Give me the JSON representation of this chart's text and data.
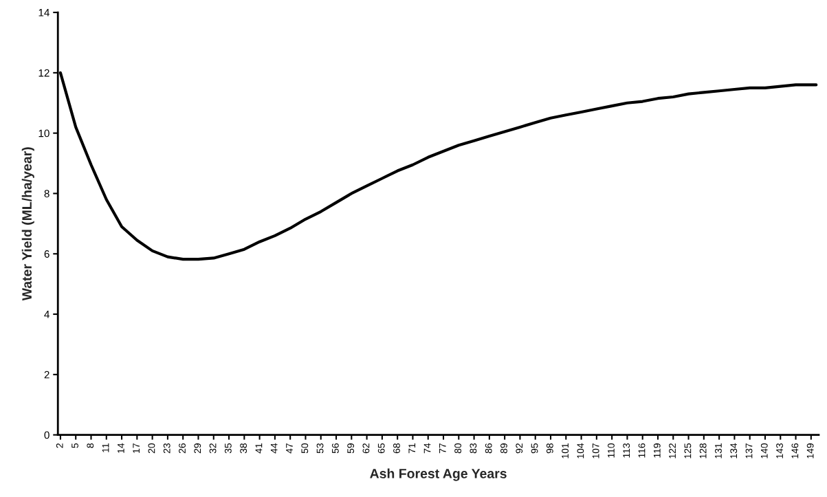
{
  "chart_data": {
    "type": "line",
    "xlabel": "Ash Forest Age Years",
    "ylabel": "Water Yield (ML/ha/year)",
    "x": [
      2,
      5,
      8,
      11,
      14,
      17,
      20,
      23,
      26,
      29,
      32,
      35,
      38,
      41,
      44,
      47,
      50,
      53,
      56,
      59,
      62,
      65,
      68,
      71,
      74,
      77,
      80,
      83,
      86,
      89,
      92,
      95,
      98,
      101,
      104,
      107,
      110,
      113,
      116,
      119,
      122,
      125,
      128,
      131,
      134,
      137,
      140,
      143,
      146,
      150
    ],
    "series": [
      {
        "color": "#000000",
        "values": [
          12.0,
          10.2,
          8.95,
          7.8,
          6.9,
          6.45,
          6.1,
          5.9,
          5.82,
          5.82,
          5.86,
          6.0,
          6.15,
          6.4,
          6.6,
          6.85,
          7.15,
          7.4,
          7.7,
          8.0,
          8.25,
          8.5,
          8.75,
          8.95,
          9.2,
          9.4,
          9.6,
          9.75,
          9.9,
          10.05,
          10.2,
          10.35,
          10.5,
          10.6,
          10.7,
          10.8,
          10.9,
          11.0,
          11.05,
          11.15,
          11.2,
          11.3,
          11.35,
          11.4,
          11.45,
          11.5,
          11.5,
          11.55,
          11.6,
          11.6
        ]
      }
    ],
    "xlim": [
      1.5,
      150.5
    ],
    "xticks": [
      2,
      5,
      8,
      11,
      14,
      17,
      20,
      23,
      26,
      29,
      32,
      35,
      38,
      41,
      44,
      47,
      50,
      53,
      56,
      59,
      62,
      65,
      68,
      71,
      74,
      77,
      80,
      83,
      86,
      89,
      92,
      95,
      98,
      101,
      104,
      107,
      110,
      113,
      116,
      119,
      122,
      125,
      128,
      131,
      134,
      137,
      140,
      143,
      146,
      149
    ],
    "ylim": [
      0,
      14
    ],
    "yticks": [
      0,
      2,
      4,
      6,
      8,
      10,
      12,
      14
    ],
    "grid": false,
    "marker": "none",
    "line_style": "solid"
  }
}
